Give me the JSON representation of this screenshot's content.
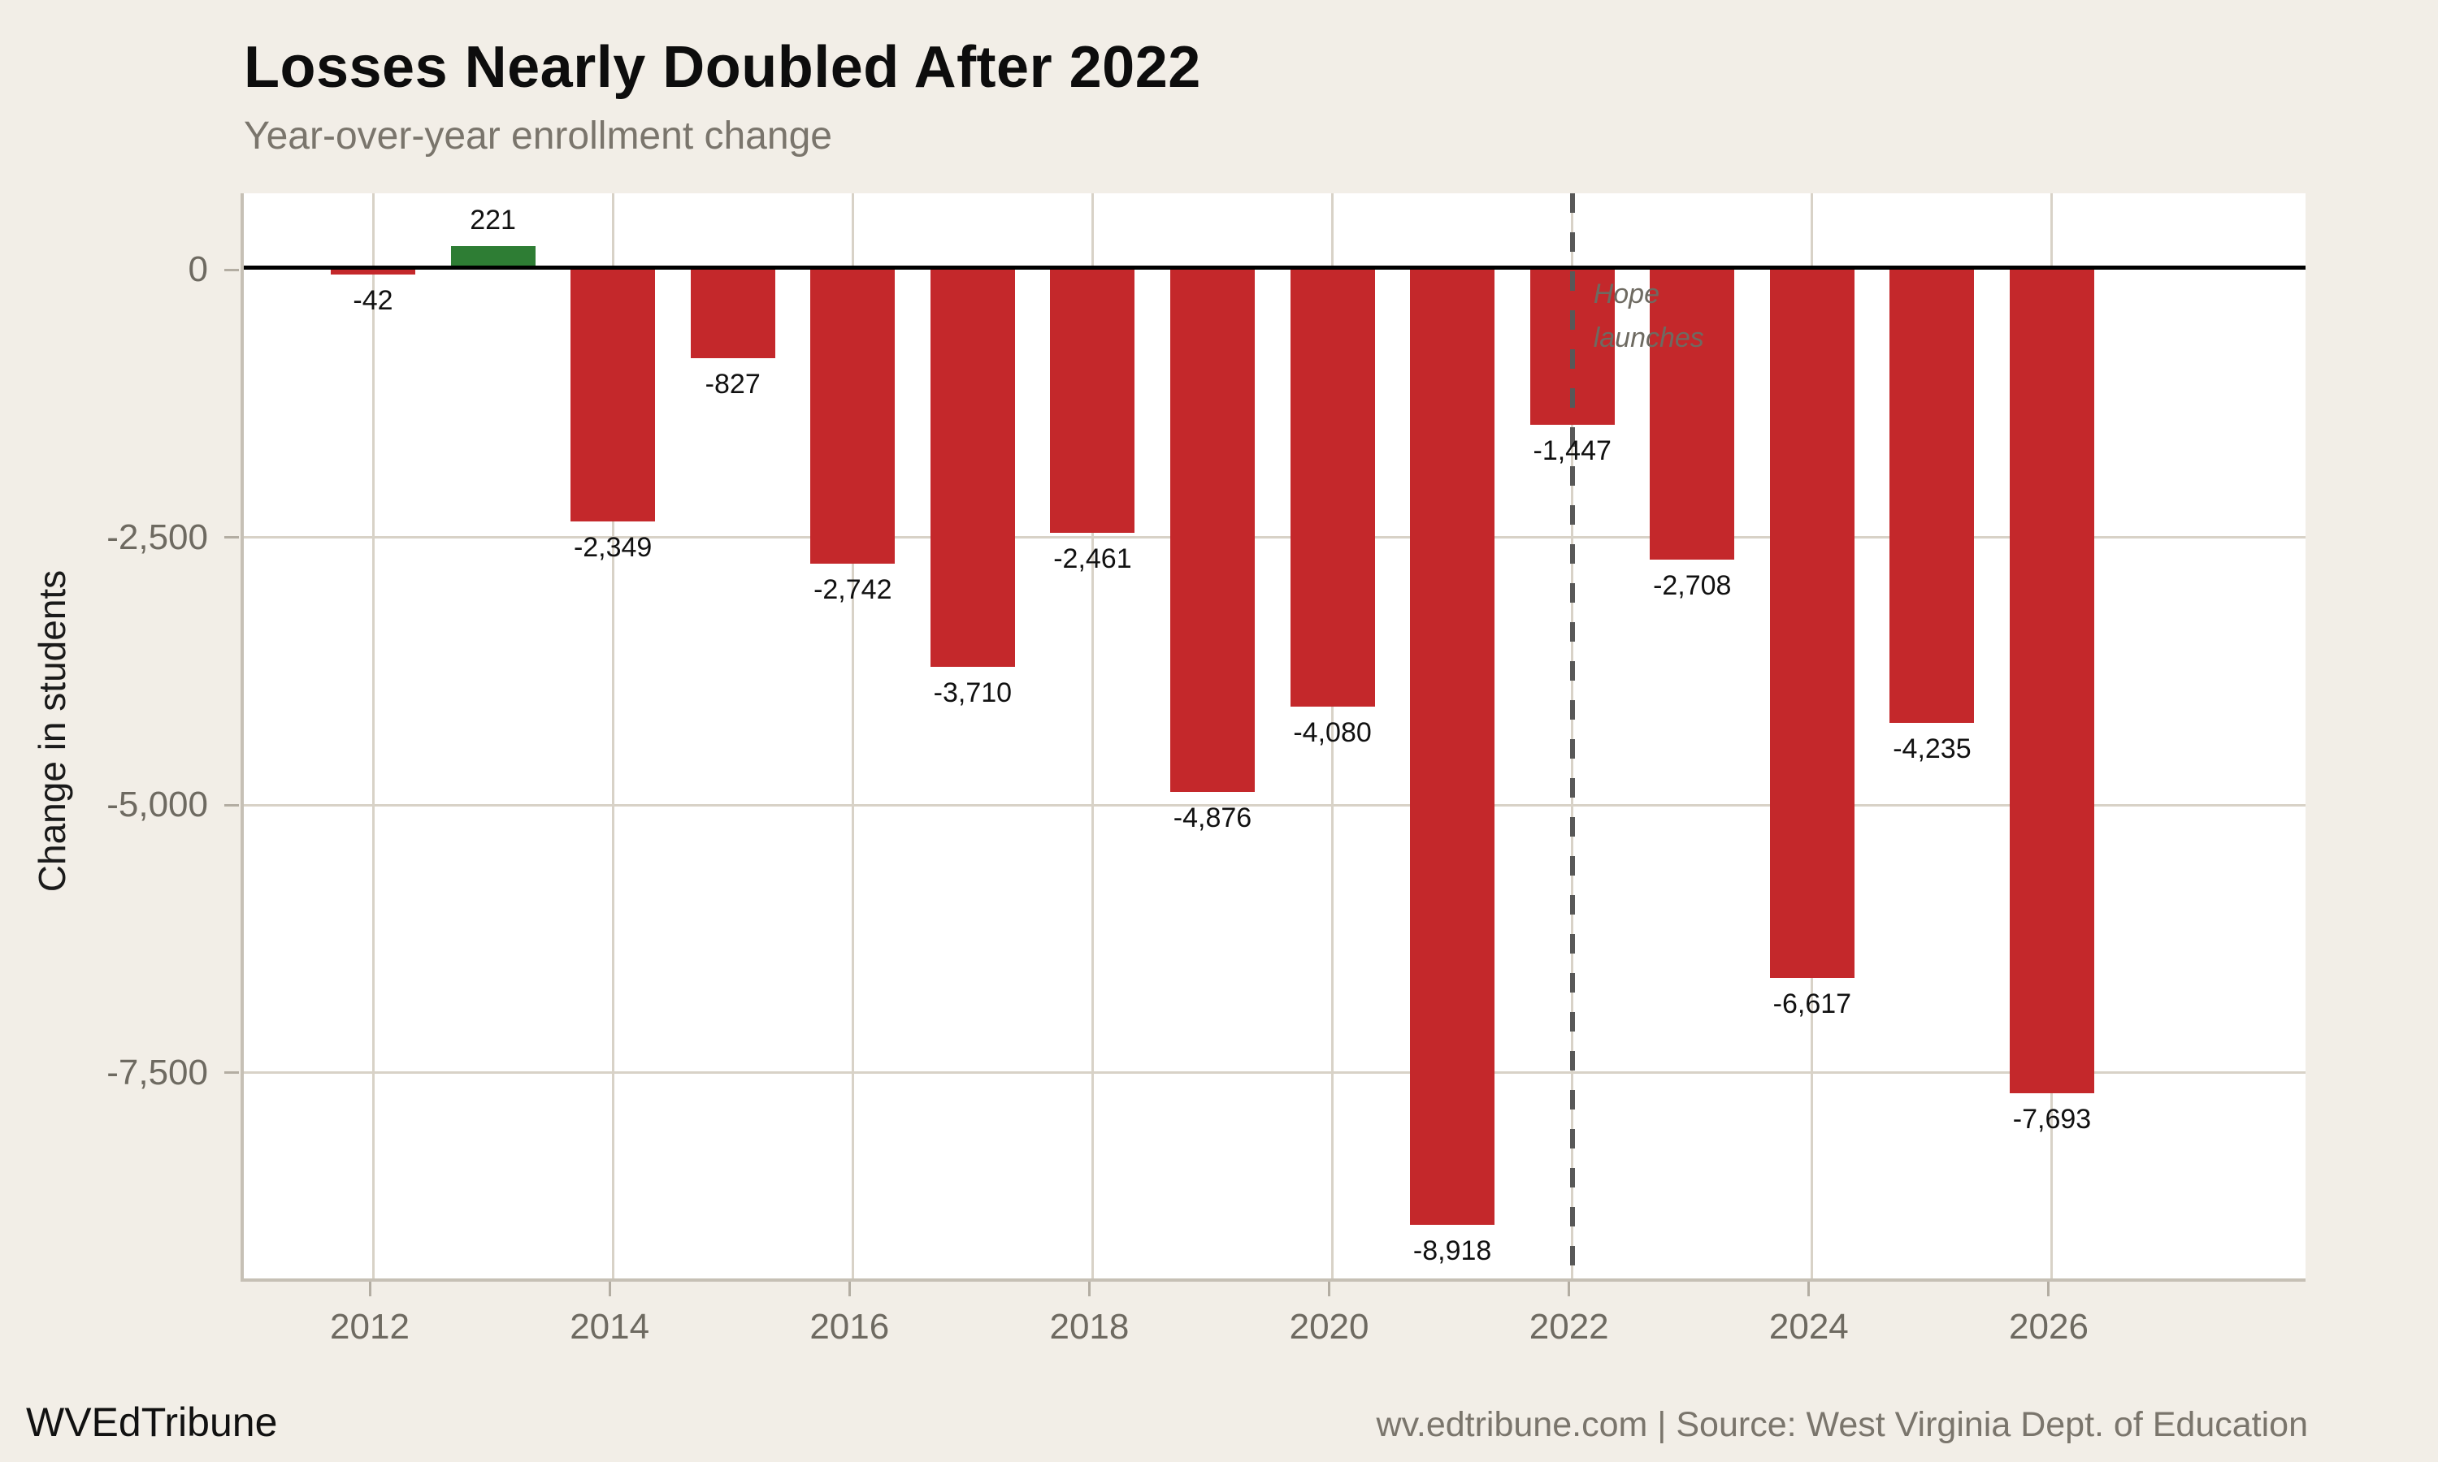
{
  "title": "Losses Nearly Doubled After 2022",
  "subtitle": "Year-over-year enrollment change",
  "footer": {
    "left": "WVEdTribune",
    "right": "wv.edtribune.com | Source: West Virginia Dept. of Education"
  },
  "colors": {
    "background": "#f2eee7",
    "plot_background": "#ffffff",
    "gridline": "#d8d2c7",
    "axis_line": "#c6c0b5",
    "tick": "#b3ada2",
    "axis_text": "#6e6a61",
    "title": "#0d0d0d",
    "subtitle": "#7a756c",
    "bar_negative": "#c4282b",
    "bar_positive": "#2e7d34",
    "zero_line": "#000000",
    "vline": "#585858",
    "annotation_text": "#6e6a61"
  },
  "chart_data": {
    "type": "bar",
    "title": "Losses Nearly Doubled After 2022",
    "subtitle": "Year-over-year enrollment change",
    "xlabel": "",
    "ylabel": "Change in students",
    "ylim": [
      -9400,
      710
    ],
    "grid": true,
    "legend": "none",
    "x": [
      2012,
      2013,
      2014,
      2015,
      2016,
      2017,
      2018,
      2019,
      2020,
      2021,
      2022,
      2023,
      2024,
      2025,
      2026
    ],
    "values": [
      -42,
      221,
      -2349,
      -827,
      -2742,
      -3710,
      -2461,
      -4876,
      -4080,
      -8918,
      -1447,
      -2708,
      -6617,
      -4235,
      -7693
    ],
    "bar_value_labels": [
      "-42",
      "221",
      "-2,349",
      "-827",
      "-2,742",
      "-3,710",
      "-2,461",
      "-4,876",
      "-4,080",
      "-8,918",
      "-1,447",
      "-2,708",
      "-6,617",
      "-4,235",
      "-7,693"
    ],
    "yticks": [
      {
        "value": 0,
        "label": "0"
      },
      {
        "value": -2500,
        "label": "-2,500"
      },
      {
        "value": -5000,
        "label": "-5,000"
      },
      {
        "value": -7500,
        "label": "-7,500"
      }
    ],
    "xticks": [
      {
        "value": 2012,
        "label": "2012"
      },
      {
        "value": 2014,
        "label": "2014"
      },
      {
        "value": 2016,
        "label": "2016"
      },
      {
        "value": 2018,
        "label": "2018"
      },
      {
        "value": 2020,
        "label": "2020"
      },
      {
        "value": 2022,
        "label": "2022"
      },
      {
        "value": 2024,
        "label": "2024"
      },
      {
        "value": 2026,
        "label": "2026"
      }
    ],
    "vline": {
      "at_year": 2022,
      "style": "dashed"
    },
    "annotation": {
      "text_lines": [
        "Hope",
        "launches"
      ],
      "at_year": 2022
    }
  }
}
